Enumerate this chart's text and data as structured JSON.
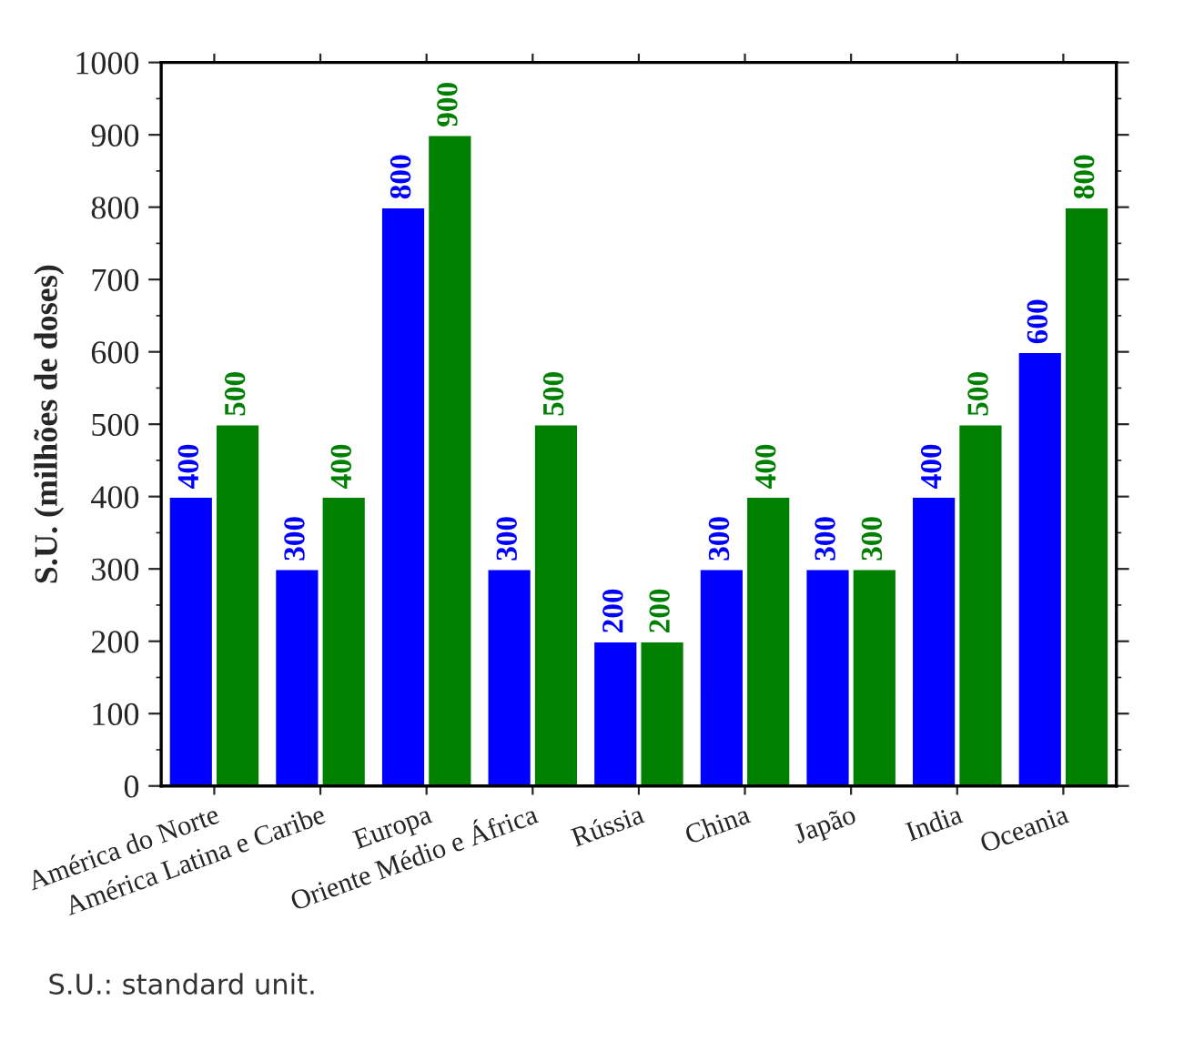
{
  "chart_data": {
    "type": "bar",
    "ylabel": "S.U. (milhões de doses)",
    "categories": [
      "América do Norte",
      "América Latina e Caribe",
      "Europa",
      "Oriente Médio e África",
      "Rússia",
      "China",
      "Japão",
      "India",
      "Oceania"
    ],
    "series": [
      {
        "color": "#0000ff",
        "values": [
          400,
          300,
          800,
          300,
          200,
          300,
          300,
          400,
          600
        ]
      },
      {
        "color": "#008000",
        "values": [
          500,
          400,
          900,
          500,
          200,
          400,
          300,
          500,
          800
        ]
      }
    ],
    "ylim": [
      0,
      1000
    ],
    "yticks": [
      0,
      100,
      200,
      300,
      400,
      500,
      600,
      700,
      800,
      900,
      1000
    ],
    "data_labels": true,
    "grid": false,
    "legend": false,
    "annotations": [
      "S.U.: standard unit."
    ]
  }
}
